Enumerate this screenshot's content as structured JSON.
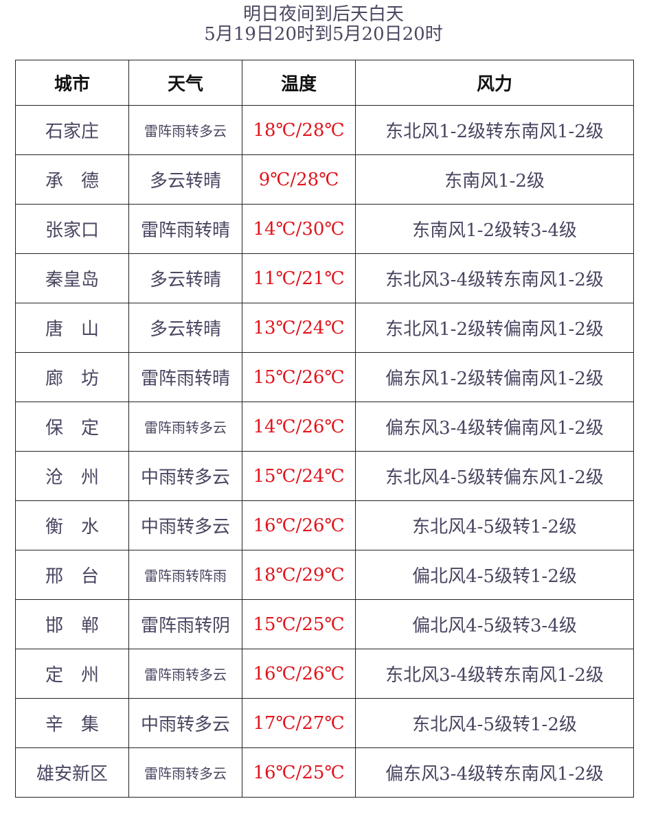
{
  "title": "明日夜间到后天白天",
  "subtitle": "5月19日20时到5月20日20时",
  "colors": {
    "temperature": "#e0141c",
    "text": "#4a4560"
  },
  "headers": [
    "城市",
    "天气",
    "温度",
    "风力"
  ],
  "rows": [
    {
      "city": "石家庄",
      "weather": "雷阵雨转多云",
      "temp": "18℃/28℃",
      "wind": "东北风1-2级转东南风1-2级"
    },
    {
      "city": "承　德",
      "weather": "多云转晴",
      "temp": "9℃/28℃",
      "wind": "东南风1-2级"
    },
    {
      "city": "张家口",
      "weather": "雷阵雨转晴",
      "temp": "14℃/30℃",
      "wind": "东南风1-2级转3-4级"
    },
    {
      "city": "秦皇岛",
      "weather": "多云转晴",
      "temp": "11℃/21℃",
      "wind": "东北风3-4级转东南风1-2级"
    },
    {
      "city": "唐　山",
      "weather": "多云转晴",
      "temp": "13℃/24℃",
      "wind": "东北风1-2级转偏南风1-2级"
    },
    {
      "city": "廊　坊",
      "weather": "雷阵雨转晴",
      "temp": "15℃/26℃",
      "wind": "偏东风1-2级转偏南风1-2级"
    },
    {
      "city": "保　定",
      "weather": "雷阵雨转多云",
      "temp": "14℃/26℃",
      "wind": "偏东风3-4级转偏南风1-2级"
    },
    {
      "city": "沧　州",
      "weather": "中雨转多云",
      "temp": "15℃/24℃",
      "wind": "东北风4-5级转偏东风1-2级"
    },
    {
      "city": "衡　水",
      "weather": "中雨转多云",
      "temp": "16℃/26℃",
      "wind": "东北风4-5级转1-2级"
    },
    {
      "city": "邢　台",
      "weather": "雷阵雨转阵雨",
      "temp": "18℃/29℃",
      "wind": "偏北风4-5级转1-2级"
    },
    {
      "city": "邯　郸",
      "weather": "雷阵雨转阴",
      "temp": "15℃/25℃",
      "wind": "偏北风4-5级转3-4级"
    },
    {
      "city": "定　州",
      "weather": "雷阵雨转多云",
      "temp": "16℃/26℃",
      "wind": "东北风3-4级转东南风1-2级"
    },
    {
      "city": "辛　集",
      "weather": "中雨转多云",
      "temp": "17℃/27℃",
      "wind": "东北风4-5级转1-2级"
    },
    {
      "city": "雄安新区",
      "weather": "雷阵雨转多云",
      "temp": "16℃/25℃",
      "wind": "偏东风3-4级转东南风1-2级"
    }
  ]
}
